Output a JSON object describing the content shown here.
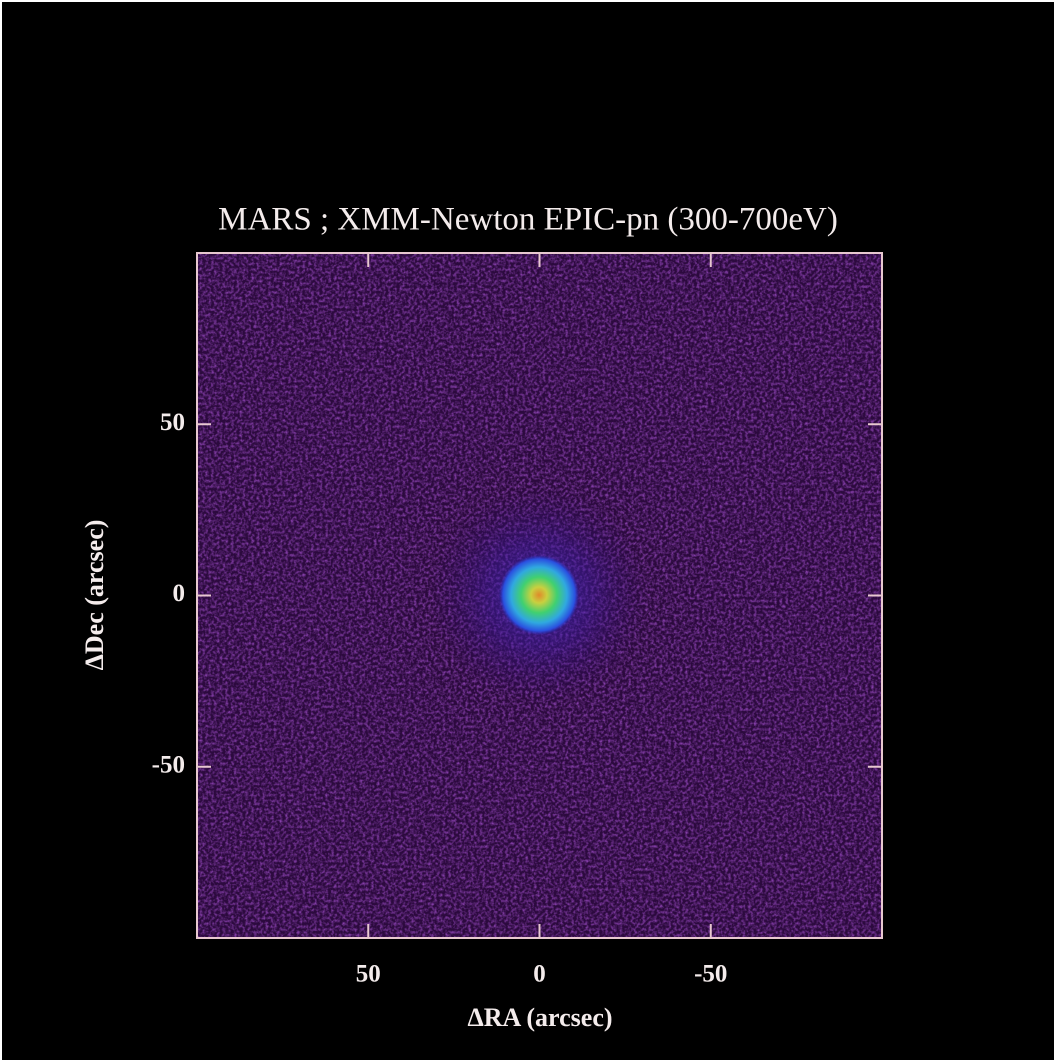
{
  "chart_data": {
    "type": "image",
    "title": "MARS ; XMM-Newton EPIC-pn (300-700eV)",
    "x_label": "ΔRA (arcsec)",
    "y_label": "ΔDec (arcsec)",
    "xlim": [
      100,
      -100
    ],
    "xticks": [
      50,
      0,
      -50
    ],
    "ylim": [
      -100,
      100
    ],
    "yticks": [
      -50,
      0,
      50
    ]
  }
}
